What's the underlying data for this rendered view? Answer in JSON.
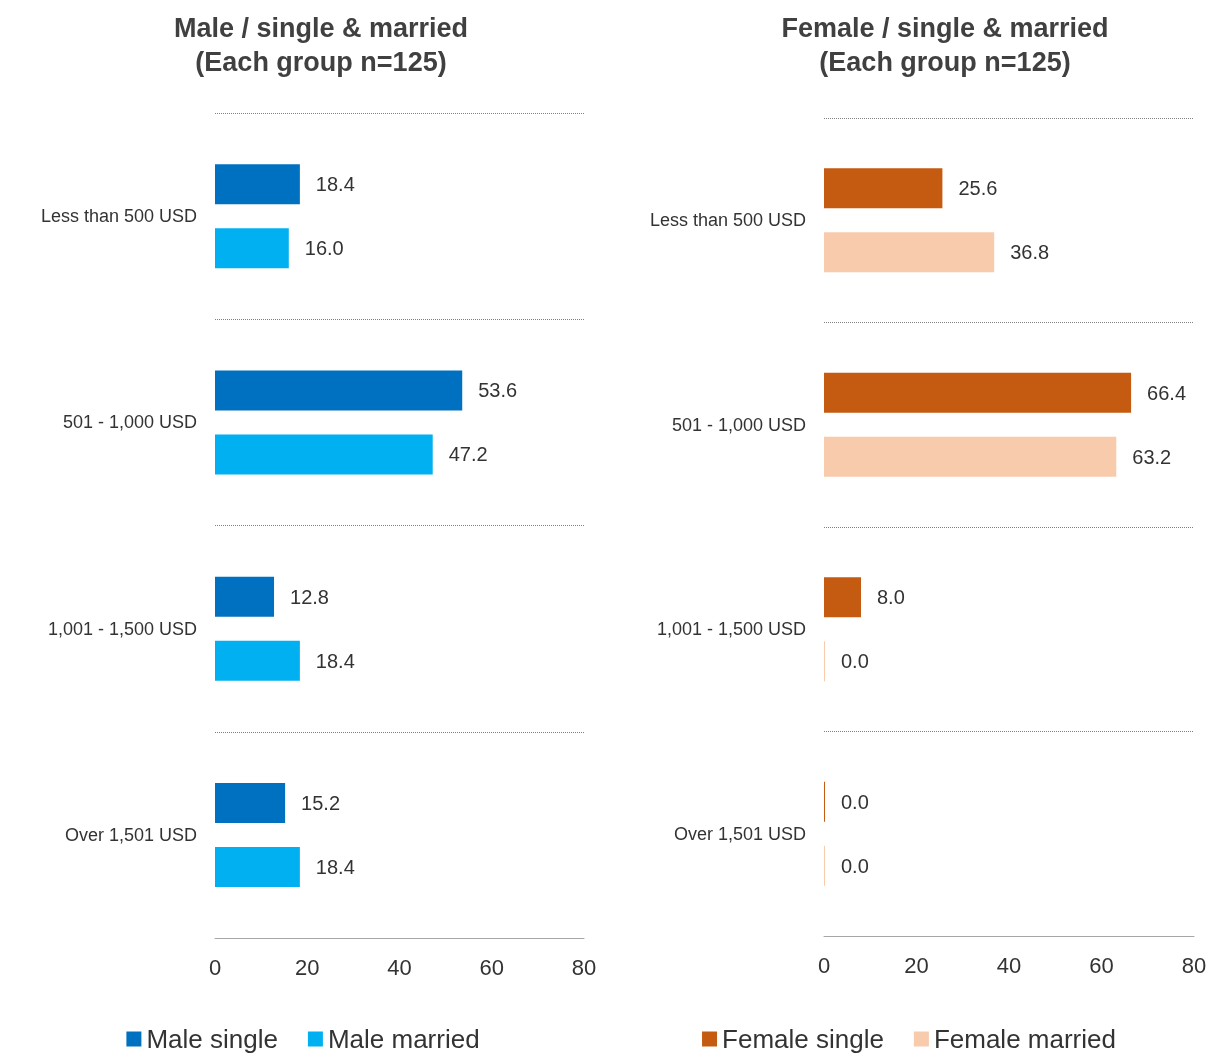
{
  "chart_data": [
    {
      "type": "bar",
      "orientation": "horizontal",
      "title": "Male / single & married\n(Each group n=125)",
      "categories": [
        "Less than 500 USD",
        "501 - 1,000 USD",
        "1,001 - 1,500 USD",
        "Over 1,501 USD"
      ],
      "series": [
        {
          "name": "Male single",
          "color": "#0070c0",
          "values": [
            18.4,
            53.6,
            12.8,
            15.2
          ],
          "value_labels": [
            "18.4",
            "53.6",
            "12.8",
            "15.2"
          ]
        },
        {
          "name": "Male married",
          "color": "#00b0f0",
          "values": [
            16.0,
            47.2,
            18.4,
            18.4
          ],
          "value_labels": [
            "16.0",
            "47.2",
            "18.4",
            "18.4"
          ]
        }
      ],
      "xlim": [
        0,
        80
      ],
      "xticks": [
        0,
        20,
        40,
        60,
        80
      ],
      "grid": "y",
      "legend": "bottom"
    },
    {
      "type": "bar",
      "orientation": "horizontal",
      "title": "Female / single & married\n(Each group n=125)",
      "categories": [
        "Less than 500 USD",
        "501 - 1,000 USD",
        "1,001 - 1,500 USD",
        "Over 1,501 USD"
      ],
      "series": [
        {
          "name": "Female single",
          "color": "#c55a11",
          "values": [
            25.6,
            66.4,
            8.0,
            0.0
          ],
          "value_labels": [
            "25.6",
            "66.4",
            "8.0",
            "0.0"
          ]
        },
        {
          "name": "Female married",
          "color": "#f8cbad",
          "values": [
            36.8,
            63.2,
            0.0,
            0.0
          ],
          "value_labels": [
            "36.8",
            "63.2",
            "0.0",
            "0.0"
          ]
        }
      ],
      "xlim": [
        0,
        80
      ],
      "xticks": [
        0,
        20,
        40,
        60,
        80
      ],
      "grid": "y",
      "legend": "bottom"
    }
  ]
}
